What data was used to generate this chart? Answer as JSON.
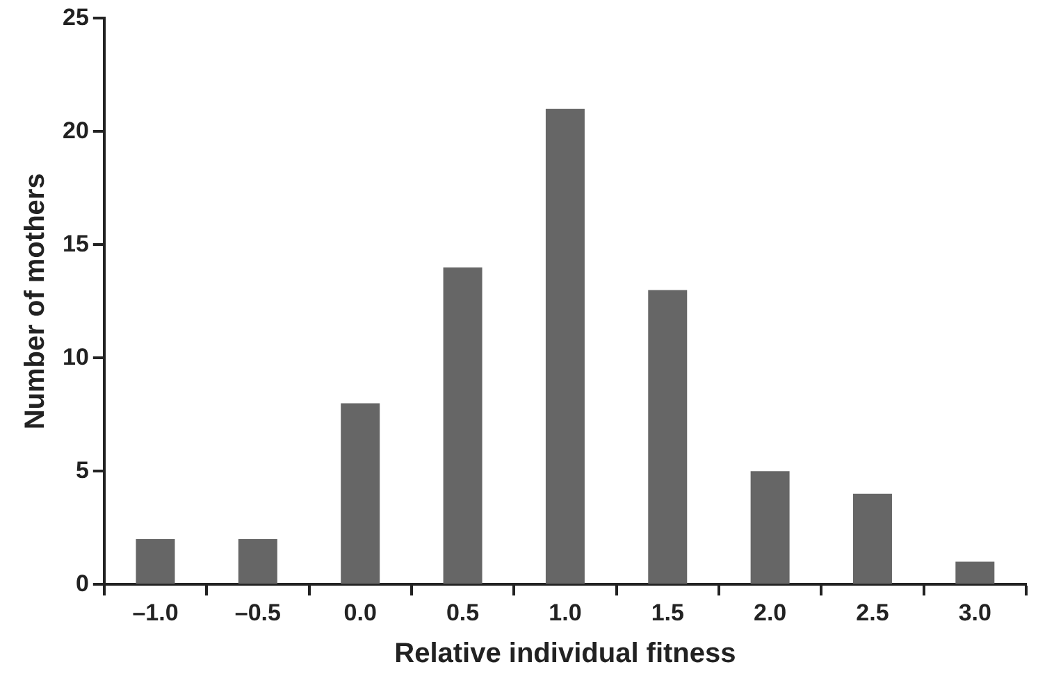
{
  "chart_data": {
    "type": "bar",
    "xlabel": "Relative individual fitness",
    "ylabel": "Number of mothers",
    "categories": [
      "–1.0",
      "–0.5",
      "0.0",
      "0.5",
      "1.0",
      "1.5",
      "2.0",
      "2.5",
      "3.0"
    ],
    "values": [
      2,
      2,
      8,
      14,
      21,
      13,
      5,
      4,
      1
    ],
    "color": "#666666",
    "ylim": [
      0,
      25
    ],
    "yticks": [
      0,
      5,
      10,
      15,
      20,
      25
    ],
    "grid": false,
    "legend": false
  }
}
